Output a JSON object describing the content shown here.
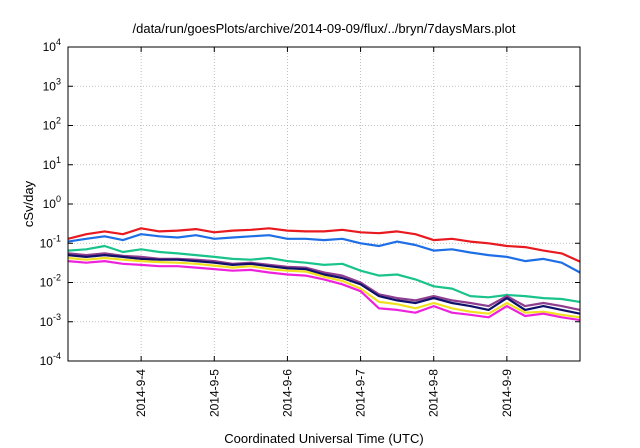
{
  "chart_data": {
    "type": "line",
    "title": "/data/run/goesPlots/archive/2014-09-09/flux/../bryn/7daysMars.plot",
    "xlabel": "Coordinated Universal Time (UTC)",
    "ylabel": "cSv/day",
    "x_range_days": [
      "2014-09-03",
      "2014-09-10"
    ],
    "y_scale": "log",
    "ylim": [
      0.0001,
      10000
    ],
    "y_ticks": [
      {
        "base": "10",
        "exp": "-4",
        "value": 0.0001
      },
      {
        "base": "10",
        "exp": "-3",
        "value": 0.001
      },
      {
        "base": "10",
        "exp": "-2",
        "value": 0.01
      },
      {
        "base": "10",
        "exp": "-1",
        "value": 0.1
      },
      {
        "base": "10",
        "exp": "0",
        "value": 1
      },
      {
        "base": "10",
        "exp": "1",
        "value": 10
      },
      {
        "base": "10",
        "exp": "2",
        "value": 100
      },
      {
        "base": "10",
        "exp": "3",
        "value": 1000
      },
      {
        "base": "10",
        "exp": "4",
        "value": 10000
      }
    ],
    "x_ticks": [
      "2014-9-4",
      "2014-9-5",
      "2014-9-6",
      "2014-9-7",
      "2014-9-8",
      "2014-9-9"
    ],
    "x_tick_dates": [
      "2014-09-04",
      "2014-09-05",
      "2014-09-06",
      "2014-09-07",
      "2014-09-08",
      "2014-09-09"
    ],
    "grid": true,
    "legend": "none",
    "x": [
      "2014-09-03 00:00",
      "2014-09-03 06:00",
      "2014-09-03 12:00",
      "2014-09-03 18:00",
      "2014-09-04 00:00",
      "2014-09-04 06:00",
      "2014-09-04 12:00",
      "2014-09-04 18:00",
      "2014-09-05 00:00",
      "2014-09-05 06:00",
      "2014-09-05 12:00",
      "2014-09-05 18:00",
      "2014-09-06 00:00",
      "2014-09-06 06:00",
      "2014-09-06 12:00",
      "2014-09-06 18:00",
      "2014-09-07 00:00",
      "2014-09-07 06:00",
      "2014-09-07 12:00",
      "2014-09-07 18:00",
      "2014-09-08 00:00",
      "2014-09-08 06:00",
      "2014-09-08 12:00",
      "2014-09-08 18:00",
      "2014-09-09 00:00",
      "2014-09-09 06:00",
      "2014-09-09 12:00",
      "2014-09-09 18:00",
      "2014-09-10 00:00"
    ],
    "series": [
      {
        "color": "#e8191f",
        "values": [
          0.13,
          0.17,
          0.2,
          0.17,
          0.24,
          0.2,
          0.21,
          0.23,
          0.19,
          0.21,
          0.22,
          0.24,
          0.21,
          0.2,
          0.2,
          0.22,
          0.19,
          0.18,
          0.2,
          0.17,
          0.12,
          0.13,
          0.11,
          0.1,
          0.085,
          0.08,
          0.065,
          0.055,
          0.034
        ]
      },
      {
        "color": "#1e6ee6",
        "values": [
          0.11,
          0.13,
          0.15,
          0.12,
          0.17,
          0.15,
          0.14,
          0.16,
          0.13,
          0.14,
          0.15,
          0.16,
          0.13,
          0.13,
          0.12,
          0.13,
          0.1,
          0.085,
          0.11,
          0.09,
          0.065,
          0.07,
          0.058,
          0.05,
          0.045,
          0.035,
          0.04,
          0.032,
          0.018
        ]
      },
      {
        "color": "#19c38b",
        "values": [
          0.065,
          0.07,
          0.085,
          0.06,
          0.07,
          0.06,
          0.055,
          0.05,
          0.045,
          0.04,
          0.038,
          0.042,
          0.035,
          0.032,
          0.028,
          0.03,
          0.02,
          0.015,
          0.016,
          0.012,
          0.008,
          0.007,
          0.0045,
          0.0042,
          0.0048,
          0.0045,
          0.004,
          0.0038,
          0.0032
        ]
      },
      {
        "color": "#8e3d8f",
        "values": [
          0.055,
          0.05,
          0.055,
          0.048,
          0.045,
          0.04,
          0.04,
          0.038,
          0.035,
          0.03,
          0.032,
          0.028,
          0.025,
          0.024,
          0.018,
          0.015,
          0.01,
          0.005,
          0.004,
          0.0035,
          0.0045,
          0.0035,
          0.003,
          0.0025,
          0.0045,
          0.0025,
          0.003,
          0.0025,
          0.002
        ]
      },
      {
        "color": "#11116b",
        "values": [
          0.05,
          0.045,
          0.05,
          0.045,
          0.04,
          0.038,
          0.038,
          0.035,
          0.032,
          0.028,
          0.03,
          0.026,
          0.023,
          0.022,
          0.016,
          0.013,
          0.009,
          0.0045,
          0.0035,
          0.003,
          0.004,
          0.003,
          0.0025,
          0.002,
          0.004,
          0.002,
          0.0025,
          0.002,
          0.0016
        ]
      },
      {
        "color": "#f0e020",
        "values": [
          0.042,
          0.038,
          0.042,
          0.038,
          0.035,
          0.033,
          0.032,
          0.03,
          0.027,
          0.024,
          0.026,
          0.022,
          0.02,
          0.019,
          0.014,
          0.011,
          0.007,
          0.0032,
          0.0028,
          0.0022,
          0.003,
          0.0022,
          0.0018,
          0.0016,
          0.003,
          0.0017,
          0.0018,
          0.0015,
          0.0013
        ]
      },
      {
        "color": "#ee22dd",
        "values": [
          0.035,
          0.032,
          0.035,
          0.03,
          0.028,
          0.026,
          0.026,
          0.024,
          0.022,
          0.02,
          0.021,
          0.018,
          0.016,
          0.015,
          0.012,
          0.009,
          0.006,
          0.0022,
          0.002,
          0.0017,
          0.0025,
          0.0017,
          0.0015,
          0.0013,
          0.0025,
          0.0014,
          0.0016,
          0.0013,
          0.0011
        ]
      }
    ]
  }
}
